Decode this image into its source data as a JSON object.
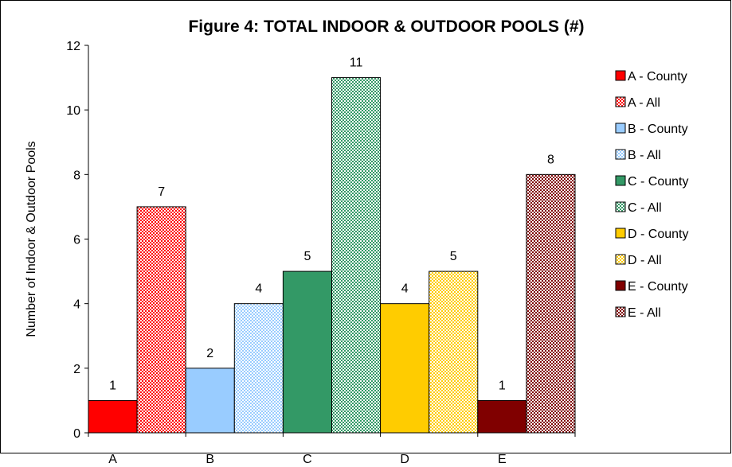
{
  "chart_data": {
    "type": "bar",
    "title": "Figure 4: TOTAL INDOOR & OUTDOOR POOLS (#)",
    "ylabel": "Number of Indoor & Outdoor Pools",
    "xlabel": "",
    "categories": [
      "A",
      "B",
      "C",
      "D",
      "E"
    ],
    "ylim": [
      0,
      12
    ],
    "yticks": [
      0,
      2,
      4,
      6,
      8,
      10,
      12
    ],
    "legend_position": "right",
    "grid": false,
    "series": [
      {
        "name": "A - County",
        "category": "A",
        "value": 1,
        "color": "#ff0000",
        "pattern": "solid"
      },
      {
        "name": "A - All",
        "category": "A",
        "value": 7,
        "color": "#ff0000",
        "pattern": "checker"
      },
      {
        "name": "B - County",
        "category": "B",
        "value": 2,
        "color": "#99ccff",
        "pattern": "solid"
      },
      {
        "name": "B - All",
        "category": "B",
        "value": 4,
        "color": "#99ccff",
        "pattern": "checker"
      },
      {
        "name": "C - County",
        "category": "C",
        "value": 5,
        "color": "#339966",
        "pattern": "solid"
      },
      {
        "name": "C - All",
        "category": "C",
        "value": 11,
        "color": "#339966",
        "pattern": "checker"
      },
      {
        "name": "D - County",
        "category": "D",
        "value": 4,
        "color": "#ffcc00",
        "pattern": "solid"
      },
      {
        "name": "D - All",
        "category": "D",
        "value": 5,
        "color": "#ffcc00",
        "pattern": "checker"
      },
      {
        "name": "E - County",
        "category": "E",
        "value": 1,
        "color": "#800000",
        "pattern": "solid"
      },
      {
        "name": "E - All",
        "category": "E",
        "value": 8,
        "color": "#800000",
        "pattern": "checker"
      }
    ]
  }
}
